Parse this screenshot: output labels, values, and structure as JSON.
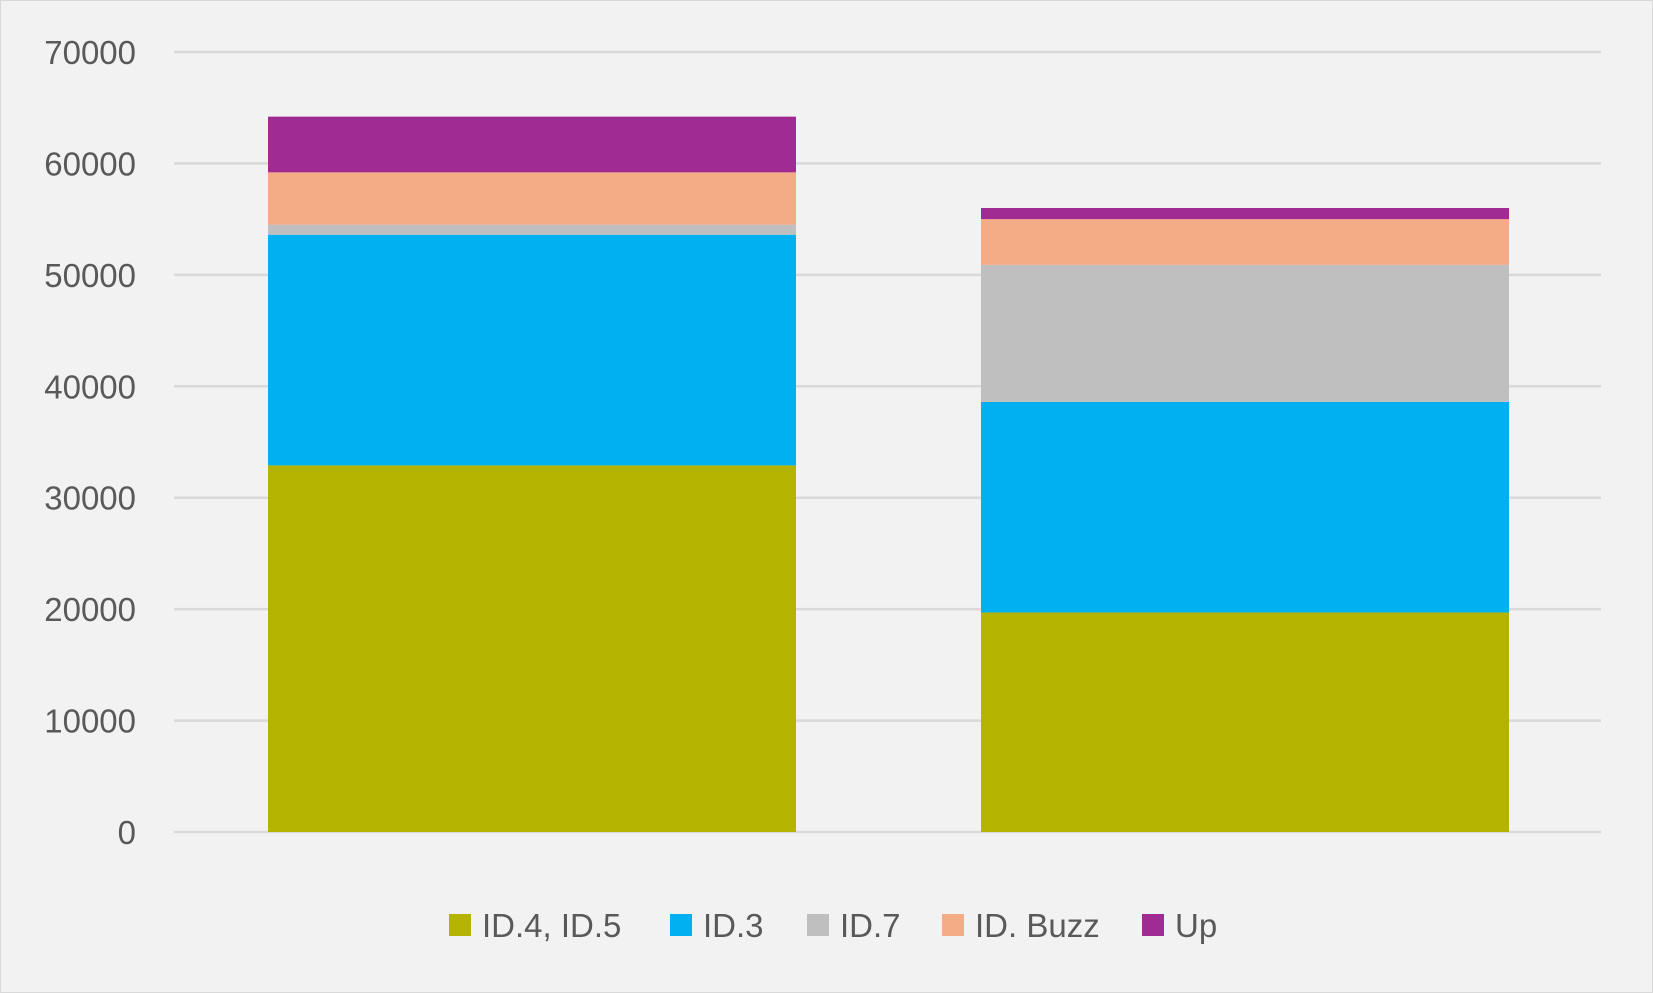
{
  "chart_data": {
    "type": "bar",
    "stacked": true,
    "title": "",
    "xlabel": "",
    "ylabel": "",
    "categories": [
      "",
      ""
    ],
    "ylim": [
      0,
      70000
    ],
    "yticks": [
      0,
      10000,
      20000,
      30000,
      40000,
      50000,
      60000,
      70000
    ],
    "grid": true,
    "legend_position": "bottom",
    "series": [
      {
        "name": "ID.4, ID.5",
        "color": "#b3b300",
        "values": [
          32900,
          19700
        ]
      },
      {
        "name": "ID.3",
        "color": "#00b0f0",
        "values": [
          20700,
          18900
        ]
      },
      {
        "name": "ID.7",
        "color": "#bfbfbf",
        "values": [
          900,
          12300
        ]
      },
      {
        "name": "ID. Buzz",
        "color": "#f4ac86",
        "values": [
          4700,
          4100
        ]
      },
      {
        "name": "Up",
        "color": "#a02b93",
        "values": [
          5000,
          1000
        ]
      }
    ]
  }
}
